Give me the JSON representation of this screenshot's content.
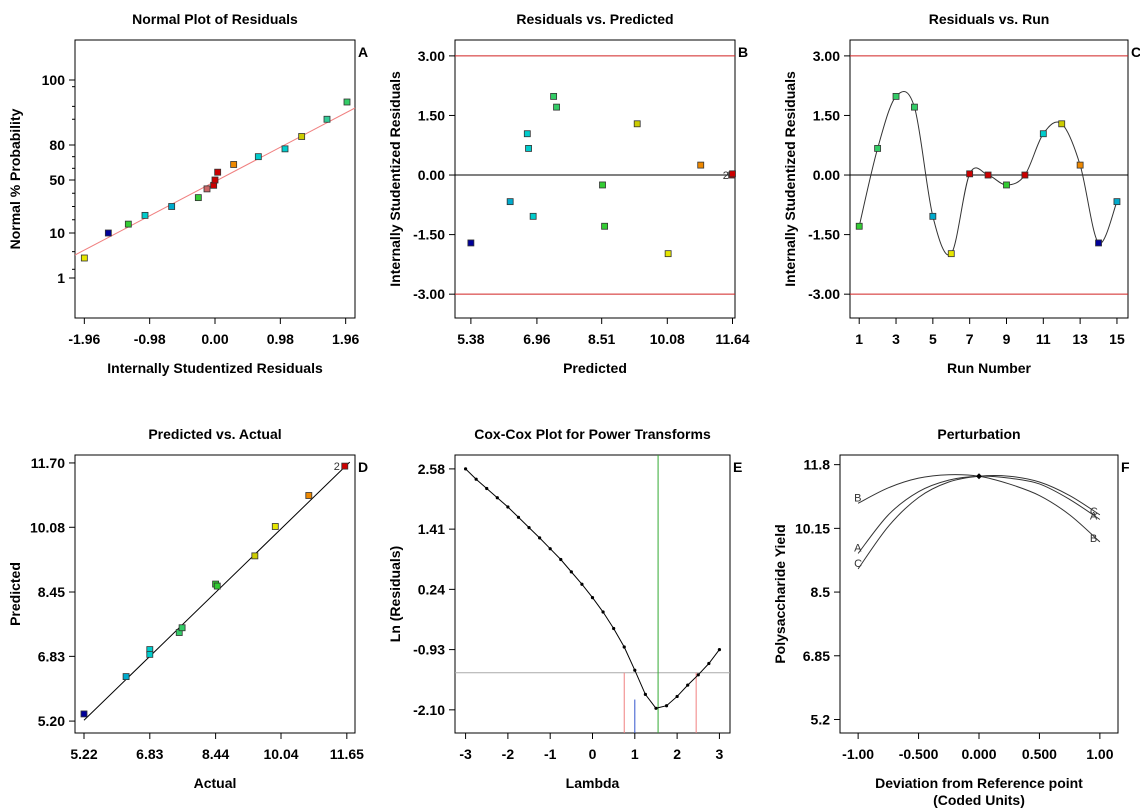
{
  "chart_data": [
    {
      "type": "scatter",
      "panel": "A",
      "title": "Normal Plot of Residuals",
      "xlabel": "Internally Studentized Residuals",
      "ylabel": "Normal % Probability",
      "x_ticks": [
        "-1.96",
        "-0.98",
        "0.00",
        "0.98",
        "1.96"
      ],
      "x_tick_values": [
        -1.96,
        -0.98,
        0.0,
        0.98,
        1.96
      ],
      "y_ticks": [
        "1",
        "10",
        "50",
        "80",
        "100"
      ],
      "xlim": [
        -2.1,
        2.1
      ],
      "points": [
        {
          "x": -1.96,
          "y": 3.3,
          "color": "#e6e600"
        },
        {
          "x": -1.6,
          "y": 10,
          "color": "#000099"
        },
        {
          "x": -1.3,
          "y": 16.7,
          "color": "#33cc33"
        },
        {
          "x": -1.05,
          "y": 23.3,
          "color": "#00cccc"
        },
        {
          "x": -0.65,
          "y": 30,
          "color": "#00aacc"
        },
        {
          "x": -0.25,
          "y": 36.7,
          "color": "#33cc33"
        },
        {
          "x": -0.12,
          "y": 43.3,
          "color": "#cc6666"
        },
        {
          "x": -0.02,
          "y": 46,
          "color": "#cc0000"
        },
        {
          "x": 0.0,
          "y": 50,
          "color": "#cc0000"
        },
        {
          "x": 0.04,
          "y": 56.7,
          "color": "#cc0000"
        },
        {
          "x": 0.28,
          "y": 63.3,
          "color": "#ee8800"
        },
        {
          "x": 0.65,
          "y": 70,
          "color": "#00cccc"
        },
        {
          "x": 1.05,
          "y": 76.7,
          "color": "#00cccc"
        },
        {
          "x": 1.3,
          "y": 83.3,
          "color": "#cccc00"
        },
        {
          "x": 1.68,
          "y": 90,
          "color": "#33cc99"
        },
        {
          "x": 1.98,
          "y": 96.7,
          "color": "#33cc66"
        }
      ]
    },
    {
      "type": "scatter",
      "panel": "B",
      "title": "Residuals vs. Predicted",
      "xlabel": "Predicted",
      "ylabel": "Internally Studentized Residuals",
      "x_ticks": [
        "5.38",
        "6.96",
        "8.51",
        "10.08",
        "11.64"
      ],
      "x_tick_values": [
        5.38,
        6.96,
        8.51,
        10.08,
        11.64
      ],
      "y_ticks": [
        "3.00",
        "1.50",
        "0.00",
        "-1.50",
        "-3.00"
      ],
      "y_tick_values": [
        3,
        1.5,
        0,
        -1.5,
        -3
      ],
      "xlim": [
        5.0,
        11.7
      ],
      "ylim": [
        -3.6,
        3.4
      ],
      "points": [
        {
          "x": 5.38,
          "y": -1.71,
          "color": "#000099"
        },
        {
          "x": 6.32,
          "y": -0.67,
          "color": "#00aacc"
        },
        {
          "x": 6.73,
          "y": 1.04,
          "color": "#00cccc"
        },
        {
          "x": 6.76,
          "y": 0.67,
          "color": "#00cccc"
        },
        {
          "x": 6.87,
          "y": -1.04,
          "color": "#00cccc"
        },
        {
          "x": 7.36,
          "y": 1.98,
          "color": "#33cc66"
        },
        {
          "x": 7.43,
          "y": 1.71,
          "color": "#33cc66"
        },
        {
          "x": 8.53,
          "y": -0.25,
          "color": "#33cc33"
        },
        {
          "x": 8.58,
          "y": -1.29,
          "color": "#33cc33"
        },
        {
          "x": 9.36,
          "y": 1.29,
          "color": "#cccc00"
        },
        {
          "x": 10.1,
          "y": -1.98,
          "color": "#e6e600"
        },
        {
          "x": 10.88,
          "y": 0.25,
          "color": "#ee8800"
        },
        {
          "x": 11.62,
          "y": 0.0,
          "color": "#cc0000"
        },
        {
          "x": 11.64,
          "y": 0.03,
          "color": "#cc0000"
        }
      ],
      "limit_lines": [
        3.0,
        -3.0
      ]
    },
    {
      "type": "line",
      "panel": "C",
      "title": "Residuals vs. Run",
      "xlabel": "Run Number",
      "ylabel": "Internally Studentized Residuals",
      "x_ticks": [
        "1",
        "3",
        "5",
        "7",
        "9",
        "11",
        "13",
        "15"
      ],
      "x_tick_values": [
        1,
        3,
        5,
        7,
        9,
        11,
        13,
        15
      ],
      "y_ticks": [
        "3.00",
        "1.50",
        "0.00",
        "-1.50",
        "-3.00"
      ],
      "y_tick_values": [
        3,
        1.5,
        0,
        -1.5,
        -3
      ],
      "xlim": [
        0.5,
        15.6
      ],
      "ylim": [
        -3.6,
        3.4
      ],
      "x": [
        1,
        2,
        3,
        4,
        5,
        6,
        7,
        8,
        9,
        10,
        11,
        12,
        13,
        14,
        15
      ],
      "y": [
        -1.29,
        0.67,
        1.98,
        1.71,
        -1.04,
        -1.98,
        0.03,
        0.0,
        -0.25,
        0.0,
        1.04,
        1.29,
        0.25,
        -1.71,
        -0.67
      ],
      "colors": [
        "#33cc33",
        "#33cc66",
        "#33cc66",
        "#33cc66",
        "#00aacc",
        "#e6e600",
        "#cc0000",
        "#cc0000",
        "#33cc33",
        "#cc0000",
        "#00cccc",
        "#cccc00",
        "#ee8800",
        "#000099",
        "#00aacc"
      ],
      "limit_lines": [
        3.0,
        -3.0
      ]
    },
    {
      "type": "scatter",
      "panel": "D",
      "title": "Predicted vs. Actual",
      "xlabel": "Actual",
      "ylabel": "Predicted",
      "x_ticks": [
        "5.22",
        "6.83",
        "8.44",
        "10.04",
        "11.65"
      ],
      "x_tick_values": [
        5.22,
        6.83,
        8.44,
        10.04,
        11.65
      ],
      "y_ticks": [
        "11.70",
        "10.08",
        "8.45",
        "6.83",
        "5.20"
      ],
      "y_tick_values": [
        11.7,
        10.08,
        8.45,
        6.83,
        5.2
      ],
      "xlim": [
        5.0,
        11.85
      ],
      "ylim": [
        4.9,
        11.9
      ],
      "points": [
        {
          "x": 5.22,
          "y": 5.38,
          "color": "#000099"
        },
        {
          "x": 6.25,
          "y": 6.32,
          "color": "#00aacc"
        },
        {
          "x": 6.83,
          "y": 7.0,
          "color": "#00cccc"
        },
        {
          "x": 6.83,
          "y": 6.88,
          "color": "#00cccc"
        },
        {
          "x": 7.55,
          "y": 7.43,
          "color": "#33cc66"
        },
        {
          "x": 7.62,
          "y": 7.55,
          "color": "#33cc66"
        },
        {
          "x": 8.44,
          "y": 8.65,
          "color": "#33cc33"
        },
        {
          "x": 8.48,
          "y": 8.6,
          "color": "#33cc33"
        },
        {
          "x": 9.4,
          "y": 9.36,
          "color": "#cccc00"
        },
        {
          "x": 9.9,
          "y": 10.1,
          "color": "#e6e600"
        },
        {
          "x": 10.72,
          "y": 10.88,
          "color": "#ee8800"
        },
        {
          "x": 11.6,
          "y": 11.62,
          "color": "#cc0000"
        }
      ],
      "annotation": "2"
    },
    {
      "type": "line",
      "panel": "E",
      "title": "Cox-Cox Plot for Power Transforms",
      "xlabel": "Lambda",
      "ylabel": "Ln (Residuals)",
      "x_ticks": [
        "-3",
        "-2",
        "-1",
        "0",
        "1",
        "2",
        "3"
      ],
      "x_tick_values": [
        -3,
        -2,
        -1,
        0,
        1,
        2,
        3
      ],
      "y_ticks": [
        "2.58",
        "1.41",
        "0.24",
        "-0.93",
        "-2.10"
      ],
      "y_tick_values": [
        2.58,
        1.41,
        0.24,
        -0.93,
        -2.1
      ],
      "xlim": [
        -3.25,
        3.25
      ],
      "ylim": [
        -2.55,
        2.85
      ],
      "x": [
        -3,
        -2.75,
        -2.5,
        -2.25,
        -2,
        -1.75,
        -1.5,
        -1.25,
        -1,
        -0.75,
        -0.5,
        -0.25,
        0,
        0.25,
        0.5,
        0.75,
        1,
        1.25,
        1.5,
        1.75,
        2,
        2.25,
        2.5,
        2.75,
        3
      ],
      "y": [
        2.58,
        2.38,
        2.2,
        2.02,
        1.84,
        1.64,
        1.44,
        1.24,
        1.03,
        0.82,
        0.58,
        0.34,
        0.08,
        -0.2,
        -0.52,
        -0.88,
        -1.33,
        -1.8,
        -2.07,
        -2.02,
        -1.84,
        -1.62,
        -1.42,
        -1.2,
        -0.93
      ],
      "best_lambda": 1.55,
      "ci_low": 0.75,
      "ci_high": 2.45,
      "current_lambda": 1.0,
      "ci_line_y": -1.38
    },
    {
      "type": "line",
      "panel": "F",
      "title": "Perturbation",
      "xlabel": "Deviation from Reference point",
      "xlabel2": "(Coded Units)",
      "ylabel": "Polysaccharide Yield",
      "x_ticks": [
        "-1.00",
        "-0.500",
        "0.000",
        "0.500",
        "1.00"
      ],
      "x_tick_values": [
        -1,
        -0.5,
        0,
        0.5,
        1
      ],
      "y_ticks": [
        "11.8",
        "10.15",
        "8.5",
        "6.85",
        "5.2"
      ],
      "y_tick_values": [
        11.8,
        10.15,
        8.5,
        6.85,
        5.2
      ],
      "xlim": [
        -1.15,
        1.15
      ],
      "ylim": [
        4.85,
        12.05
      ],
      "series": [
        {
          "name": "A",
          "x": [
            -1,
            -0.75,
            -0.5,
            -0.25,
            0,
            0.25,
            0.5,
            0.75,
            1
          ],
          "y": [
            9.5,
            10.5,
            11.1,
            11.4,
            11.5,
            11.45,
            11.3,
            10.9,
            10.38
          ]
        },
        {
          "name": "B",
          "x": [
            -1,
            -0.75,
            -0.5,
            -0.25,
            0,
            0.25,
            0.5,
            0.75,
            1
          ],
          "y": [
            10.8,
            11.2,
            11.45,
            11.54,
            11.5,
            11.3,
            11.0,
            10.5,
            9.8
          ]
        },
        {
          "name": "C",
          "x": [
            -1,
            -0.75,
            -0.5,
            -0.25,
            0,
            0.25,
            0.5,
            0.75,
            1
          ],
          "y": [
            9.1,
            10.2,
            10.95,
            11.35,
            11.5,
            11.5,
            11.35,
            11.0,
            10.5
          ]
        }
      ]
    }
  ]
}
